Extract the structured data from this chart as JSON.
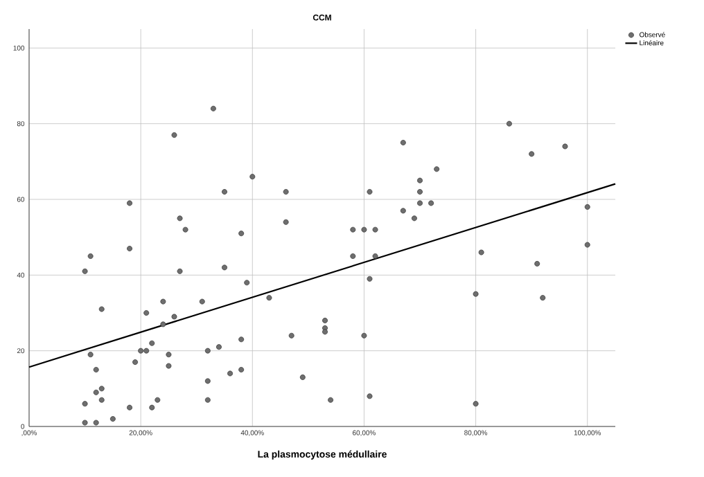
{
  "chart_data": {
    "type": "scatter",
    "title": "CCM",
    "xlabel": "La plasmocytose médullaire",
    "xlim": [
      0,
      105
    ],
    "ylim": [
      0,
      105
    ],
    "xticks": [
      {
        "value": 0,
        "label": ",00%"
      },
      {
        "value": 20,
        "label": "20,00%"
      },
      {
        "value": 40,
        "label": "40,00%"
      },
      {
        "value": 60,
        "label": "60,00%"
      },
      {
        "value": 80,
        "label": "80,00%"
      },
      {
        "value": 100,
        "label": "100,00%"
      }
    ],
    "yticks": [
      0,
      20,
      40,
      60,
      80,
      100
    ],
    "grid": true,
    "legend": "top right",
    "series": [
      {
        "name": "Observé",
        "marker": "circle",
        "color": "#6e6e6e",
        "x": [
          27,
          28,
          38,
          18,
          11,
          10,
          27,
          35,
          39,
          13,
          24,
          31,
          21,
          26,
          24,
          22,
          38,
          34,
          11,
          20,
          21,
          32,
          25,
          19,
          25,
          12,
          38,
          36,
          32,
          13,
          12,
          10,
          13,
          18,
          22,
          23,
          32,
          15,
          10,
          12,
          33,
          26,
          35,
          18,
          40,
          46,
          46,
          61,
          67,
          73,
          70,
          70,
          70,
          72,
          67,
          69,
          58,
          60,
          62,
          58,
          62,
          61,
          43,
          53,
          53,
          53,
          47,
          60,
          49,
          54,
          61,
          86,
          90,
          96,
          100,
          81,
          91,
          100,
          80,
          92,
          80
        ],
        "values": [
          55,
          52,
          51,
          47,
          45,
          41,
          41,
          42,
          38,
          31,
          33,
          33,
          30,
          29,
          27,
          22,
          23,
          21,
          19,
          20,
          20,
          20,
          19,
          17,
          16,
          15,
          15,
          14,
          12,
          10,
          9,
          6,
          7,
          5,
          5,
          7,
          7,
          2,
          1,
          1,
          84,
          77,
          62,
          59,
          66,
          62,
          54,
          62,
          75,
          68,
          65,
          62,
          59,
          59,
          57,
          55,
          52,
          52,
          52,
          45,
          45,
          39,
          34,
          28,
          26,
          25,
          24,
          24,
          13,
          7,
          8,
          80,
          72,
          74,
          58,
          46,
          43,
          48,
          35,
          34,
          6
        ]
      },
      {
        "name": "Linéaire",
        "type": "line",
        "marker": "none",
        "line_style": "solid",
        "color": "#000000",
        "x": [
          0,
          105
        ],
        "values": [
          15.7,
          64.1
        ]
      }
    ]
  }
}
